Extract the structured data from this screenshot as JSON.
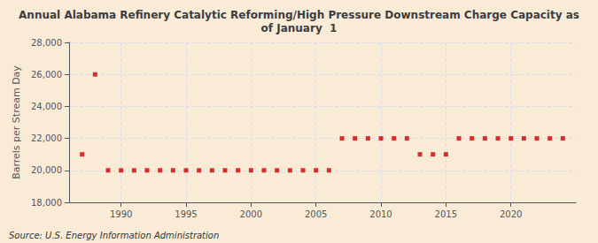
{
  "chart_data": {
    "type": "scatter",
    "title": "Annual Alabama Refinery Catalytic Reforming/High Pressure Downstream Charge Capacity as\nof January  1",
    "ylabel": "Barrels per Stream Day",
    "annotations": [
      "Source: U.S. Energy Information Administration"
    ],
    "x": [
      1987,
      1988,
      1989,
      1990,
      1991,
      1992,
      1993,
      1994,
      1995,
      1996,
      1997,
      1998,
      1999,
      2000,
      2001,
      2002,
      2003,
      2004,
      2005,
      2006,
      2007,
      2008,
      2009,
      2010,
      2011,
      2012,
      2013,
      2014,
      2015,
      2016,
      2017,
      2018,
      2019,
      2020,
      2021,
      2022,
      2023,
      2024
    ],
    "values": [
      21000,
      26000,
      20000,
      20000,
      20000,
      20000,
      20000,
      20000,
      20000,
      20000,
      20000,
      20000,
      20000,
      20000,
      20000,
      20000,
      20000,
      20000,
      20000,
      20000,
      22000,
      22000,
      22000,
      22000,
      22000,
      22000,
      21000,
      21000,
      21000,
      22000,
      22000,
      22000,
      22000,
      22000,
      22000,
      22000,
      22000,
      22000
    ],
    "color": "#cc0000",
    "marker": "square",
    "xlim": [
      1986,
      2025
    ],
    "xticks": [
      1990,
      1995,
      2000,
      2005,
      2010,
      2015,
      2020
    ],
    "ylim": [
      18000,
      28000
    ],
    "yticks": [
      {
        "value": 18000,
        "label": "18,000"
      },
      {
        "value": 20000,
        "label": "20,000"
      },
      {
        "value": 22000,
        "label": "22,000"
      },
      {
        "value": 24000,
        "label": "24,000"
      },
      {
        "value": 26000,
        "label": "26,000"
      },
      {
        "value": 28000,
        "label": "28,000"
      }
    ],
    "grid": true
  }
}
